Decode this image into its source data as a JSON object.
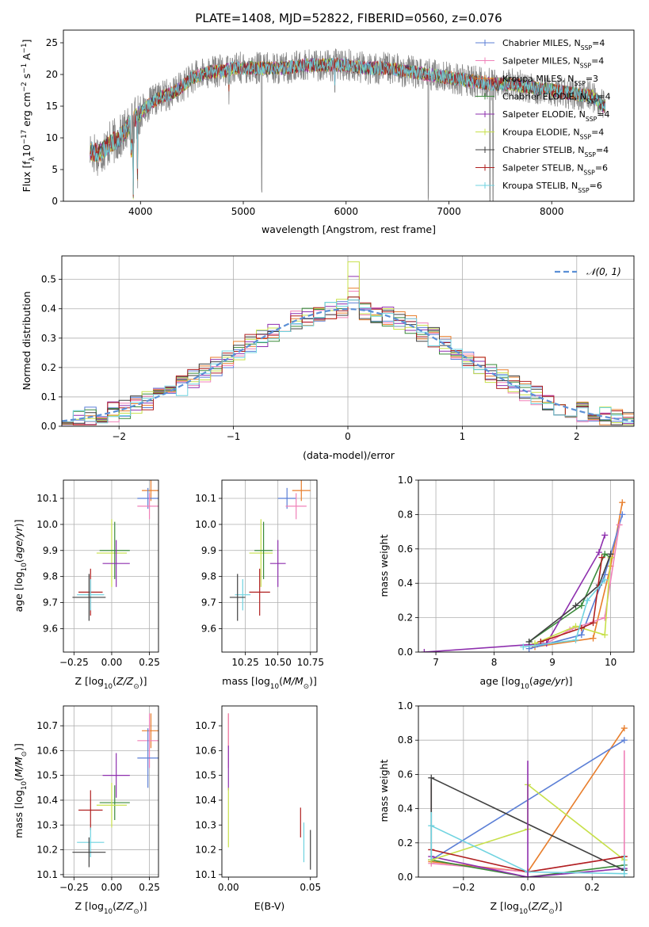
{
  "chart_data": [
    {
      "id": "spectrum",
      "type": "line",
      "title": "PLATE=1408, MJD=52822, FIBERID=0560, z=0.076",
      "xlabel": "wavelength [Angstrom, rest frame]",
      "ylabel": "Flux [f$_{\\lambda}$10$^{-17}$ erg cm$^{-2}$ s$^{-1}$ A$^{-1}$]",
      "ylabel_parts": [
        "Flux [f",
        "λ",
        "10",
        "−17",
        " erg cm",
        "−2",
        " s",
        "−1",
        " A",
        "−1",
        "]"
      ],
      "xlim": [
        3250,
        8800
      ],
      "ylim": [
        0,
        27
      ],
      "xticks": [
        4000,
        5000,
        6000,
        7000,
        8000
      ],
      "yticks": [
        0,
        5,
        10,
        15,
        20,
        25
      ],
      "grid": false,
      "legend_position": "upper-right",
      "continuum": {
        "x": [
          3500,
          3600,
          3700,
          3800,
          3900,
          4000,
          4100,
          4200,
          4300,
          4400,
          4500,
          4600,
          4700,
          4800,
          4900,
          5000,
          5200,
          5400,
          5600,
          5800,
          6000,
          6200,
          6400,
          6600,
          6800,
          7000,
          7200,
          7400,
          7600,
          7800,
          8000,
          8200,
          8400,
          8500
        ],
        "y": [
          8,
          7.5,
          9,
          10,
          12,
          14,
          15.5,
          16.5,
          17,
          18,
          19.5,
          20,
          20.5,
          20.5,
          21,
          21,
          21,
          21,
          21.5,
          21.5,
          21.5,
          21,
          21,
          20.5,
          20,
          19.5,
          19,
          18.5,
          18.5,
          18,
          17.5,
          17,
          16.5,
          15
        ]
      },
      "features": [
        {
          "x": 3930,
          "drop": 11
        },
        {
          "x": 3970,
          "drop": 9
        },
        {
          "x": 4860,
          "drop": 3
        },
        {
          "x": 5180,
          "drop": 21
        },
        {
          "x": 5890,
          "drop": 3
        },
        {
          "x": 6800,
          "drop": 20
        },
        {
          "x": 7400,
          "drop": 20
        },
        {
          "x": 7430,
          "drop": 20
        }
      ],
      "series": [
        {
          "name": "Chabrier MILES, N$_{SSP}$=4",
          "label_parts": [
            "Chabrier MILES, N",
            "SSP",
            "=4"
          ],
          "color": "#5b7fd6",
          "kind": "obs"
        },
        {
          "name": "Salpeter MILES, N$_{SSP}$=4",
          "label_parts": [
            "Salpeter MILES, N",
            "SSP",
            "=4"
          ],
          "color": "#f080b8",
          "kind": "model"
        },
        {
          "name": "Kroupa MILES, N$_{SSP}$=3",
          "label_parts": [
            "Kroupa MILES, N",
            "SSP",
            "=3"
          ],
          "color": "#e87e2c",
          "kind": "model"
        },
        {
          "name": "Chabrier ELODIE, N$_{SSP}$=4",
          "label_parts": [
            "Chabrier ELODIE, N",
            "SSP",
            "=4"
          ],
          "color": "#3a8a3a",
          "kind": "model"
        },
        {
          "name": "Salpeter ELODIE, N$_{SSP}$=4",
          "label_parts": [
            "Salpeter ELODIE, N",
            "SSP",
            "=4"
          ],
          "color": "#8e2fae",
          "kind": "model"
        },
        {
          "name": "Kroupa ELODIE, N$_{SSP}$=4",
          "label_parts": [
            "Kroupa ELODIE, N",
            "SSP",
            "=4"
          ],
          "color": "#c7e04a",
          "kind": "model"
        },
        {
          "name": "Chabrier STELIB, N$_{SSP}$=4",
          "label_parts": [
            "Chabrier STELIB, N",
            "SSP",
            "=4"
          ],
          "color": "#404040",
          "kind": "model"
        },
        {
          "name": "Salpeter STELIB, N$_{SSP}$=6",
          "label_parts": [
            "Salpeter STELIB, N",
            "SSP",
            "=6"
          ],
          "color": "#b02020",
          "kind": "model"
        },
        {
          "name": "Kroupa STELIB, N$_{SSP}$=6",
          "label_parts": [
            "Kroupa STELIB, N",
            "SSP",
            "=6"
          ],
          "color": "#6fd3e0",
          "kind": "model"
        }
      ]
    },
    {
      "id": "residuals",
      "type": "histogram",
      "xlabel": "(data-model)/error",
      "ylabel": "Normed distribution",
      "xlim": [
        -2.5,
        2.5
      ],
      "ylim": [
        0,
        0.58
      ],
      "xticks": [
        -2,
        -1,
        0,
        1,
        2
      ],
      "yticks": [
        0.0,
        0.1,
        0.2,
        0.3,
        0.4,
        0.5
      ],
      "grid": true,
      "legend_position": "upper-right",
      "reference_curve": {
        "name": "$\\mathcal{N}(0,1)$",
        "label_text": "𝒩(0, 1)",
        "color": "#5b8fd6",
        "style": "dashed"
      },
      "bin_edges_range": [
        -2.5,
        2.5
      ],
      "bin_width": 0.1,
      "series_offsets": [
        {
          "color": "#5b7fd6",
          "peak": 0.42
        },
        {
          "color": "#f080b8",
          "peak": 0.46
        },
        {
          "color": "#e87e2c",
          "peak": 0.47
        },
        {
          "color": "#3a8a3a",
          "peak": 0.44
        },
        {
          "color": "#8e2fae",
          "peak": 0.51
        },
        {
          "color": "#c7e04a",
          "peak": 0.56
        },
        {
          "color": "#404040",
          "peak": 0.43
        },
        {
          "color": "#b02020",
          "peak": 0.44
        },
        {
          "color": "#6fd3e0",
          "peak": 0.43
        }
      ]
    },
    {
      "id": "age_vs_Z",
      "type": "scatter",
      "xlabel": "Z [log$_{10}$(Z/Z$_\\odot$)]",
      "xlabel_parts": [
        "Z [log",
        "10",
        "(",
        "Z/Z",
        "⊙",
        ")]"
      ],
      "ylabel": "age  [log$_{10}$(age/yr)]",
      "ylabel_parts": [
        "age  [log",
        "10",
        "(",
        "age/yr",
        ")]"
      ],
      "xlim": [
        -0.32,
        0.31
      ],
      "ylim": [
        9.51,
        10.17
      ],
      "xticks": [
        -0.25,
        0.0,
        0.25
      ],
      "xticklabels": [
        "−0.25",
        "0.00",
        "0.25"
      ],
      "yticks": [
        9.6,
        9.7,
        9.8,
        9.9,
        10.0,
        10.1
      ],
      "grid": true,
      "points": [
        {
          "color": "#e87e2c",
          "x": 0.26,
          "xerr": 0.06,
          "y": 10.13,
          "yerr": 0.04
        },
        {
          "color": "#5b7fd6",
          "x": 0.24,
          "xerr": 0.07,
          "y": 10.1,
          "yerr": 0.04
        },
        {
          "color": "#f080b8",
          "x": 0.25,
          "xerr": 0.08,
          "y": 10.07,
          "yerr": 0.05
        },
        {
          "color": "#c7e04a",
          "x": 0.0,
          "xerr": 0.1,
          "y": 9.89,
          "yerr": 0.13
        },
        {
          "color": "#3a8a3a",
          "x": 0.02,
          "xerr": 0.1,
          "y": 9.9,
          "yerr": 0.11
        },
        {
          "color": "#8e2fae",
          "x": 0.03,
          "xerr": 0.09,
          "y": 9.85,
          "yerr": 0.09
        },
        {
          "color": "#b02020",
          "x": -0.14,
          "xerr": 0.08,
          "y": 9.74,
          "yerr": 0.09
        },
        {
          "color": "#6fd3e0",
          "x": -0.14,
          "xerr": 0.09,
          "y": 9.73,
          "yerr": 0.06
        },
        {
          "color": "#404040",
          "x": -0.15,
          "xerr": 0.11,
          "y": 9.72,
          "yerr": 0.09
        }
      ]
    },
    {
      "id": "age_vs_mass",
      "type": "scatter",
      "xlabel": "mass [log$_{10}$(M/M$_\\odot$)]",
      "xlabel_parts": [
        "mass [log",
        "10",
        "(",
        "M/M",
        "⊙",
        ")]"
      ],
      "xlim": [
        10.07,
        10.8
      ],
      "ylim": [
        9.51,
        10.17
      ],
      "xticks": [
        10.25,
        10.5,
        10.75
      ],
      "xticklabels": [
        "10.25",
        "10.50",
        "10.75"
      ],
      "yticks": [
        9.6,
        9.7,
        9.8,
        9.9,
        10.0,
        10.1
      ],
      "grid": true,
      "points": [
        {
          "color": "#e87e2c",
          "x": 10.68,
          "xerr": 0.07,
          "y": 10.13,
          "yerr": 0.04
        },
        {
          "color": "#5b7fd6",
          "x": 10.57,
          "xerr": 0.07,
          "y": 10.1,
          "yerr": 0.04
        },
        {
          "color": "#f080b8",
          "x": 10.64,
          "xerr": 0.08,
          "y": 10.07,
          "yerr": 0.05
        },
        {
          "color": "#c7e04a",
          "x": 10.37,
          "xerr": 0.09,
          "y": 9.89,
          "yerr": 0.13
        },
        {
          "color": "#3a8a3a",
          "x": 10.39,
          "xerr": 0.07,
          "y": 9.9,
          "yerr": 0.11
        },
        {
          "color": "#8e2fae",
          "x": 10.5,
          "xerr": 0.06,
          "y": 9.85,
          "yerr": 0.09
        },
        {
          "color": "#b02020",
          "x": 10.36,
          "xerr": 0.08,
          "y": 9.74,
          "yerr": 0.09
        },
        {
          "color": "#6fd3e0",
          "x": 10.23,
          "xerr": 0.06,
          "y": 9.73,
          "yerr": 0.06
        },
        {
          "color": "#404040",
          "x": 10.19,
          "xerr": 0.06,
          "y": 9.72,
          "yerr": 0.09
        }
      ]
    },
    {
      "id": "mass_weight_vs_age",
      "type": "line",
      "xlabel": "age  [log$_{10}$(age/yr)]",
      "xlabel_parts": [
        "age  [log",
        "10",
        "(",
        "age/yr",
        ")]"
      ],
      "ylabel": "mass weight",
      "xlim": [
        6.7,
        10.4
      ],
      "ylim": [
        0,
        1.0
      ],
      "xticks": [
        7,
        8,
        9,
        10
      ],
      "yticks": [
        0.0,
        0.2,
        0.4,
        0.6,
        0.8,
        1.0
      ],
      "grid": true,
      "series": [
        {
          "color": "#e87e2c",
          "x": [
            8.7,
            9.7,
            10.0,
            10.2
          ],
          "y": [
            0.03,
            0.08,
            0.5,
            0.87
          ]
        },
        {
          "color": "#5b7fd6",
          "x": [
            8.6,
            9.5,
            9.9,
            10.2
          ],
          "y": [
            0.02,
            0.1,
            0.45,
            0.8
          ]
        },
        {
          "color": "#f080b8",
          "x": [
            8.9,
            9.3,
            9.9,
            10.15
          ],
          "y": [
            0.05,
            0.13,
            0.2,
            0.74
          ]
        },
        {
          "color": "#3a8a3a",
          "x": [
            8.6,
            9.5,
            9.9,
            10.0
          ],
          "y": [
            0.06,
            0.27,
            0.57,
            0.55
          ]
        },
        {
          "color": "#8e2fae",
          "x": [
            6.8,
            8.9,
            9.8,
            9.9
          ],
          "y": [
            0.0,
            0.05,
            0.58,
            0.68
          ]
        },
        {
          "color": "#c7e04a",
          "x": [
            8.7,
            9.4,
            9.9,
            10.0
          ],
          "y": [
            0.05,
            0.15,
            0.1,
            0.55
          ]
        },
        {
          "color": "#404040",
          "x": [
            8.6,
            9.4,
            9.8,
            10.0
          ],
          "y": [
            0.06,
            0.27,
            0.39,
            0.57
          ]
        },
        {
          "color": "#b02020",
          "x": [
            8.8,
            9.5,
            9.7,
            9.85
          ],
          "y": [
            0.06,
            0.14,
            0.17,
            0.55
          ]
        },
        {
          "color": "#6fd3e0",
          "x": [
            8.5,
            9.4,
            9.6,
            9.9
          ],
          "y": [
            0.03,
            0.07,
            0.3,
            0.42
          ]
        }
      ]
    },
    {
      "id": "mass_vs_Z",
      "type": "scatter",
      "xlabel": "Z [log$_{10}$(Z/Z$_\\odot$)]",
      "xlabel_parts": [
        "Z [log",
        "10",
        "(",
        "Z/Z",
        "⊙",
        ")]"
      ],
      "ylabel": "mass [log$_{10}$(M/M$_\\odot$)]",
      "ylabel_parts": [
        "mass [log",
        "10",
        "(",
        "M/M",
        "⊙",
        ")]"
      ],
      "xlim": [
        -0.32,
        0.31
      ],
      "ylim": [
        10.09,
        10.78
      ],
      "xticks": [
        -0.25,
        0.0,
        0.25
      ],
      "xticklabels": [
        "−0.25",
        "0.00",
        "0.25"
      ],
      "yticks": [
        10.1,
        10.2,
        10.3,
        10.4,
        10.5,
        10.6,
        10.7
      ],
      "grid": true,
      "points": [
        {
          "color": "#e87e2c",
          "x": 0.26,
          "xerr": 0.06,
          "y": 10.68,
          "yerr": 0.07
        },
        {
          "color": "#f080b8",
          "x": 0.25,
          "xerr": 0.08,
          "y": 10.64,
          "yerr": 0.11
        },
        {
          "color": "#5b7fd6",
          "x": 0.24,
          "xerr": 0.07,
          "y": 10.57,
          "yerr": 0.12
        },
        {
          "color": "#8e2fae",
          "x": 0.03,
          "xerr": 0.09,
          "y": 10.5,
          "yerr": 0.09
        },
        {
          "color": "#3a8a3a",
          "x": 0.02,
          "xerr": 0.1,
          "y": 10.39,
          "yerr": 0.07
        },
        {
          "color": "#c7e04a",
          "x": 0.0,
          "xerr": 0.1,
          "y": 10.38,
          "yerr": 0.09
        },
        {
          "color": "#b02020",
          "x": -0.14,
          "xerr": 0.08,
          "y": 10.36,
          "yerr": 0.08
        },
        {
          "color": "#6fd3e0",
          "x": -0.14,
          "xerr": 0.09,
          "y": 10.23,
          "yerr": 0.06
        },
        {
          "color": "#404040",
          "x": -0.15,
          "xerr": 0.11,
          "y": 10.19,
          "yerr": 0.06
        }
      ]
    },
    {
      "id": "mass_vs_EBV",
      "type": "scatter",
      "xlabel": "E(B-V)",
      "xlim": [
        -0.004,
        0.054
      ],
      "ylim": [
        10.09,
        10.78
      ],
      "xticks": [
        0.0,
        0.05
      ],
      "xticklabels": [
        "0.00",
        "0.05"
      ],
      "yticks": [
        10.1,
        10.2,
        10.3,
        10.4,
        10.5,
        10.6,
        10.7
      ],
      "grid": false,
      "points": [
        {
          "color": "#e87e2c",
          "x": 0.0,
          "xerr": 0,
          "y": 10.68,
          "yerr": 0.07
        },
        {
          "color": "#f080b8",
          "x": 0.0,
          "xerr": 0,
          "y": 10.64,
          "yerr": 0.11
        },
        {
          "color": "#8e2fae",
          "x": 0.0,
          "xerr": 0,
          "y": 10.53,
          "yerr": 0.09
        },
        {
          "color": "#c7e04a",
          "x": 0.0,
          "xerr": 0,
          "y": 10.33,
          "yerr": 0.12
        },
        {
          "color": "#b02020",
          "x": 0.044,
          "xerr": 0,
          "y": 10.31,
          "yerr": 0.06
        },
        {
          "color": "#6fd3e0",
          "x": 0.046,
          "xerr": 0,
          "y": 10.23,
          "yerr": 0.08
        },
        {
          "color": "#404040",
          "x": 0.05,
          "xerr": 0,
          "y": 10.2,
          "yerr": 0.08
        }
      ]
    },
    {
      "id": "mass_weight_vs_Z",
      "type": "line",
      "xlabel": "Z [log$_{10}$(Z/Z$_\\odot$)]",
      "xlabel_parts": [
        "Z [log",
        "10",
        "(",
        "Z/Z",
        "⊙",
        ")]"
      ],
      "ylabel": "mass weight",
      "xlim": [
        -0.34,
        0.33
      ],
      "ylim": [
        0,
        1.0
      ],
      "xticks": [
        -0.2,
        0.0,
        0.2
      ],
      "xticklabels": [
        "−0.2",
        "0.0",
        "0.2"
      ],
      "yticks": [
        0.0,
        0.2,
        0.4,
        0.6,
        0.8,
        1.0
      ],
      "grid": true,
      "series": [
        {
          "color": "#e87e2c",
          "x": [
            -0.3,
            0.0,
            0.3
          ],
          "y": [
            0.09,
            0.03,
            0.87
          ]
        },
        {
          "color": "#5b7fd6",
          "x": [
            -0.3,
            0.3
          ],
          "y": [
            0.1,
            0.8
          ]
        },
        {
          "color": "#f080b8",
          "x": [
            -0.3,
            0.0,
            0.3
          ],
          "y": [
            0.08,
            0.03,
            0.12
          ]
        },
        {
          "color": "#3a8a3a",
          "x": [
            -0.3,
            0.0,
            0.3
          ],
          "y": [
            0.1,
            0.0,
            0.07
          ]
        },
        {
          "color": "#8e2fae",
          "x": [
            -0.3,
            0.0,
            0.3
          ],
          "y": [
            0.12,
            0.0,
            0.05
          ]
        },
        {
          "color": "#c7e04a",
          "x": [
            -0.3,
            0.0,
            0.0,
            0.3
          ],
          "y": [
            0.1,
            0.28,
            0.54,
            0.1
          ]
        },
        {
          "color": "#404040",
          "x": [
            -0.3,
            0.3
          ],
          "y": [
            0.58,
            0.04
          ]
        },
        {
          "color": "#b02020",
          "x": [
            -0.3,
            0.0,
            0.3
          ],
          "y": [
            0.16,
            0.03,
            0.12
          ]
        },
        {
          "color": "#6fd3e0",
          "x": [
            -0.3,
            0.0,
            0.3
          ],
          "y": [
            0.3,
            0.03,
            0.02
          ]
        }
      ],
      "vertical_markers": [
        {
          "color": "#b02020",
          "x": -0.3,
          "y": [
            0.12,
            0.55
          ]
        },
        {
          "color": "#404040",
          "x": -0.3,
          "y": [
            0.1,
            0.58
          ]
        },
        {
          "color": "#6fd3e0",
          "x": -0.3,
          "y": [
            0.1,
            0.38
          ]
        },
        {
          "color": "#8e2fae",
          "x": 0.0,
          "y": [
            0.0,
            0.68
          ]
        },
        {
          "color": "#f080b8",
          "x": 0.3,
          "y": [
            0.05,
            0.74
          ]
        },
        {
          "color": "#6fd3e0",
          "x": 0.3,
          "y": [
            0.02,
            0.13
          ]
        }
      ]
    }
  ]
}
